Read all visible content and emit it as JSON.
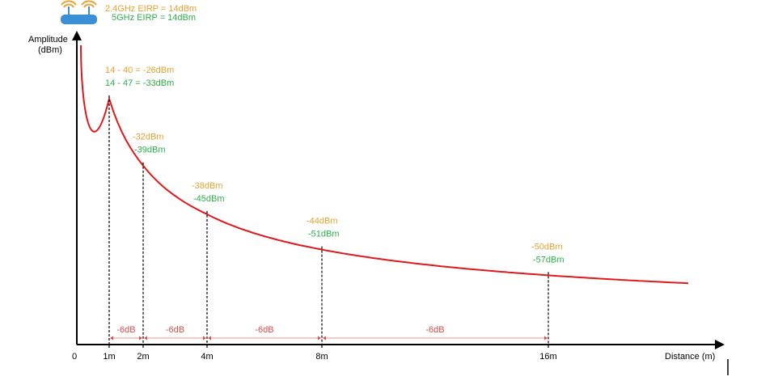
{
  "router": {
    "icon": "wifi-router-icon",
    "eirp_24": "2.4GHz EIRP = 14dBm",
    "eirp_5": "5GHz EIRP = 14dBm"
  },
  "colors": {
    "band_24": "#e8a232",
    "band_5": "#2db04b",
    "curve": "#e0191c",
    "gap": "#e24a4a",
    "axis": "#000000",
    "router": "#3b8fd6"
  },
  "axes": {
    "y_label_line1": "Amplitude",
    "y_label_line2": "(dBm)",
    "x_label": "Distance (m)",
    "origin_label": "0"
  },
  "chart_data": {
    "type": "line",
    "x_unit": "m",
    "x": [
      1,
      2,
      4,
      8,
      16
    ],
    "tick_labels": [
      "1m",
      "2m",
      "4m",
      "8m",
      "16m"
    ],
    "series": [
      {
        "values": [
          -26,
          -32,
          -38,
          -44,
          -50
        ],
        "labels": [
          "14 - 40 = -26dBm",
          "-32dBm",
          "-38dBm",
          "-44dBm",
          "-50dBm"
        ]
      },
      {
        "values": [
          -33,
          -39,
          -45,
          -51,
          -57
        ],
        "labels": [
          "14 - 47 = -33dBm",
          "-39dBm",
          "-45dBm",
          "-51dBm",
          "-57dBm"
        ]
      }
    ],
    "gaps": [
      "-6dB",
      "-6dB",
      "-6dB",
      "-6dB"
    ]
  }
}
